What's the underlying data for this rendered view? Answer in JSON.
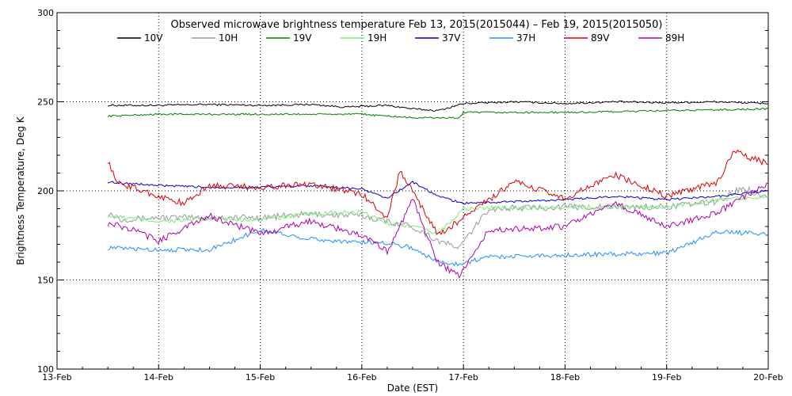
{
  "chart_data": {
    "type": "line",
    "title": "Observed microwave brightness temperature Feb 13, 2015(2015044) – Feb 19, 2015(2015050)",
    "xlabel": "Date (EST)",
    "ylabel": "Brightness Temperature, Deg K",
    "xlim": [
      "2015-02-13",
      "2015-02-20"
    ],
    "ylim": [
      100,
      300
    ],
    "x_ticks": [
      "13-Feb",
      "14-Feb",
      "15-Feb",
      "16-Feb",
      "17-Feb",
      "18-Feb",
      "19-Feb",
      "20-Feb"
    ],
    "y_ticks": [
      100,
      150,
      200,
      250,
      300
    ],
    "grid": "dotted",
    "legend_position": "top",
    "series": [
      {
        "name": "10V",
        "color": "#000000",
        "x": [
          "2015-02-13 12:00",
          "2015-02-14 00:00",
          "2015-02-14 12:00",
          "2015-02-15 00:00",
          "2015-02-15 12:00",
          "2015-02-15 20:00",
          "2015-02-16 06:00",
          "2015-02-16 12:00",
          "2015-02-16 18:00",
          "2015-02-17 00:00",
          "2015-02-17 12:00",
          "2015-02-18 00:00",
          "2015-02-18 12:00",
          "2015-02-19 00:00",
          "2015-02-19 12:00",
          "2015-02-20 00:00"
        ],
        "y": [
          248,
          248,
          248.5,
          248,
          248.5,
          247,
          248,
          246,
          245,
          249,
          250,
          249,
          250,
          249.5,
          250,
          249
        ]
      },
      {
        "name": "10H",
        "color": "#999999",
        "x": [
          "2015-02-13 12:00",
          "2015-02-13 15:00",
          "2015-02-14 00:00",
          "2015-02-14 12:00",
          "2015-02-15 00:00",
          "2015-02-15 12:00",
          "2015-02-16 00:00",
          "2015-02-16 06:00",
          "2015-02-16 12:00",
          "2015-02-16 18:00",
          "2015-02-16 23:00",
          "2015-02-17 06:00",
          "2015-02-18 00:00",
          "2015-02-19 00:00",
          "2015-02-19 12:00",
          "2015-02-19 18:00",
          "2015-02-20 00:00"
        ],
        "y": [
          188,
          184,
          185,
          185,
          185,
          187,
          186,
          183,
          180,
          172,
          168,
          190,
          191,
          191,
          194,
          202,
          196
        ]
      },
      {
        "name": "19V",
        "color": "#008000",
        "x": [
          "2015-02-13 12:00",
          "2015-02-14 00:00",
          "2015-02-15 00:00",
          "2015-02-16 00:00",
          "2015-02-16 06:00",
          "2015-02-16 12:00",
          "2015-02-16 23:00",
          "2015-02-17 00:00",
          "2015-02-18 00:00",
          "2015-02-19 00:00",
          "2015-02-20 00:00"
        ],
        "y": [
          242,
          243,
          243,
          243,
          242,
          241,
          241,
          244,
          244,
          245,
          246
        ]
      },
      {
        "name": "19H",
        "color": "#7CE87C",
        "x": [
          "2015-02-13 12:00",
          "2015-02-14 00:00",
          "2015-02-14 12:00",
          "2015-02-15 00:00",
          "2015-02-15 12:00",
          "2015-02-16 00:00",
          "2015-02-16 06:00",
          "2015-02-16 12:00",
          "2015-02-16 18:00",
          "2015-02-17 00:00",
          "2015-02-18 00:00",
          "2015-02-19 00:00",
          "2015-02-19 12:00",
          "2015-02-20 00:00"
        ],
        "y": [
          186,
          183,
          184,
          184,
          187,
          188,
          182,
          180,
          176,
          190,
          191,
          191,
          195,
          197
        ]
      },
      {
        "name": "37V",
        "color": "#0000CC",
        "x": [
          "2015-02-13 12:00",
          "2015-02-14 00:00",
          "2015-02-14 12:00",
          "2015-02-15 00:00",
          "2015-02-15 12:00",
          "2015-02-16 00:00",
          "2015-02-16 06:00",
          "2015-02-16 12:00",
          "2015-02-16 18:00",
          "2015-02-17 00:00",
          "2015-02-17 12:00",
          "2015-02-18 00:00",
          "2015-02-18 12:00",
          "2015-02-19 00:00",
          "2015-02-19 12:00",
          "2015-02-20 00:00"
        ],
        "y": [
          205,
          203,
          202,
          202,
          203,
          201,
          196,
          205,
          197,
          193,
          194,
          195,
          197,
          195,
          197,
          200
        ]
      },
      {
        "name": "37H",
        "color": "#1E90FF",
        "x": [
          "2015-02-13 12:00",
          "2015-02-14 00:00",
          "2015-02-14 12:00",
          "2015-02-15 00:00",
          "2015-02-15 12:00",
          "2015-02-16 00:00",
          "2015-02-16 06:00",
          "2015-02-16 12:00",
          "2015-02-16 18:00",
          "2015-02-16 23:00",
          "2015-02-17 06:00",
          "2015-02-18 00:00",
          "2015-02-19 00:00",
          "2015-02-19 12:00",
          "2015-02-20 00:00"
        ],
        "y": [
          168,
          167,
          167,
          178,
          173,
          171,
          171,
          168,
          160,
          159,
          163,
          164,
          165,
          177,
          176
        ]
      },
      {
        "name": "89V",
        "color": "#DD0000",
        "x": [
          "2015-02-13 12:00",
          "2015-02-13 14:00",
          "2015-02-14 00:00",
          "2015-02-14 06:00",
          "2015-02-14 12:00",
          "2015-02-15 00:00",
          "2015-02-15 12:00",
          "2015-02-16 00:00",
          "2015-02-16 06:00",
          "2015-02-16 09:00",
          "2015-02-16 12:00",
          "2015-02-16 18:00",
          "2015-02-17 00:00",
          "2015-02-17 12:00",
          "2015-02-18 00:00",
          "2015-02-18 12:00",
          "2015-02-19 00:00",
          "2015-02-19 12:00",
          "2015-02-19 16:00",
          "2015-02-20 00:00"
        ],
        "y": [
          217,
          205,
          197,
          193,
          203,
          202,
          204,
          198,
          185,
          211,
          200,
          175,
          185,
          205,
          196,
          209,
          197,
          205,
          222,
          215
        ]
      },
      {
        "name": "89H",
        "color": "#B000B0",
        "x": [
          "2015-02-13 12:00",
          "2015-02-13 18:00",
          "2015-02-14 00:00",
          "2015-02-14 12:00",
          "2015-02-15 00:00",
          "2015-02-15 12:00",
          "2015-02-16 00:00",
          "2015-02-16 06:00",
          "2015-02-16 12:00",
          "2015-02-16 18:00",
          "2015-02-16 23:00",
          "2015-02-17 06:00",
          "2015-02-18 00:00",
          "2015-02-18 12:00",
          "2015-02-19 00:00",
          "2015-02-19 12:00",
          "2015-02-20 00:00"
        ],
        "y": [
          182,
          178,
          172,
          186,
          176,
          183,
          175,
          166,
          195,
          160,
          152,
          178,
          180,
          193,
          180,
          188,
          204
        ]
      }
    ]
  }
}
